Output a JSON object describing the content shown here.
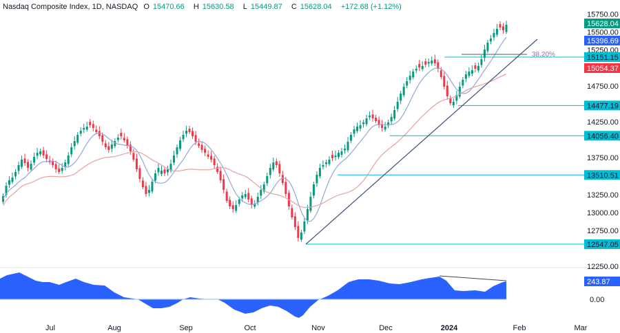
{
  "header": {
    "symbol": "Nasdaq Composite Index, 1D, NASDAQ",
    "open_label": "O",
    "open": "15470.66",
    "high_label": "H",
    "high": "15630.58",
    "low_label": "L",
    "low": "15449.87",
    "close_label": "C",
    "close": "15628.04",
    "change": "+172.68 (+1.12%)"
  },
  "colors": {
    "up": "#089981",
    "down": "#f23645",
    "ma_fast": "#8fa8d8",
    "ma_slow": "#e8a0a0",
    "level": "#00bcd4",
    "trendline": "#3d4e7a",
    "fib": "#9c6fb0",
    "oscillator": "#2962ff",
    "last_price_tag": "#089981",
    "ma_fast_tag": "#2962ff",
    "ma_slow_tag": "#f23645"
  },
  "price_axis": {
    "ticks": [
      "15750.00",
      "15500.00",
      "15250.00",
      "14750.00",
      "14250.00",
      "13750.00",
      "13250.00",
      "13000.00",
      "12750.00",
      "12250.00"
    ]
  },
  "tags": {
    "last_price": "15628.04",
    "ma_fast": "15396.69",
    "ma_slow": "15054.37",
    "fib_label": "38.20%"
  },
  "levels": [
    "15151.15",
    "14477.19",
    "14056.40",
    "13510.51",
    "12547.05"
  ],
  "oscillator": {
    "value": "243.87",
    "zero": "0.00"
  },
  "time_axis": [
    "Jul",
    "Aug",
    "Sep",
    "Oct",
    "Nov",
    "Dec",
    "2024",
    "Feb",
    "Mar"
  ],
  "chart_data": {
    "type": "candlestick",
    "title": "Nasdaq Composite Index, 1D, NASDAQ",
    "xlabel": "",
    "ylabel": "Price",
    "ylim": [
      12250,
      15750
    ],
    "x_ticks": [
      "Jul",
      "Aug",
      "Sep",
      "Oct",
      "Nov",
      "Dec",
      "2024",
      "Feb",
      "Mar"
    ],
    "last_ohlc": {
      "open": 15470.66,
      "high": 15630.58,
      "low": 15449.87,
      "close": 15628.04,
      "change": 172.68,
      "change_pct": 1.12
    },
    "moving_averages": [
      {
        "name": "MA fast",
        "last": 15396.69,
        "color": "#8fa8d8"
      },
      {
        "name": "MA slow",
        "last": 15054.37,
        "color": "#e8a0a0"
      }
    ],
    "horizontal_levels": [
      15151.15,
      14477.19,
      14056.4,
      13510.51,
      12547.05
    ],
    "fibonacci": {
      "label": "38.20%",
      "level": 15270
    },
    "trendline": {
      "from": {
        "date": "Oct 27",
        "price": 12547
      },
      "to": {
        "date": "Feb 1",
        "price": 15450
      }
    },
    "approx_closes": [
      {
        "month": "Jul",
        "close": 13800
      },
      {
        "month": "Aug",
        "close": 14300
      },
      {
        "month": "Sep",
        "close": 13700
      },
      {
        "month": "Oct",
        "close": 13200
      },
      {
        "month": "Nov",
        "close": 12700
      },
      {
        "month": "Dec",
        "close": 14300
      },
      {
        "month": "2024",
        "close": 15000
      },
      {
        "month": "Feb",
        "close": 15628
      }
    ],
    "oscillator": {
      "type": "area",
      "last": 243.87,
      "zero_line": 0,
      "divergence_line": true
    }
  }
}
